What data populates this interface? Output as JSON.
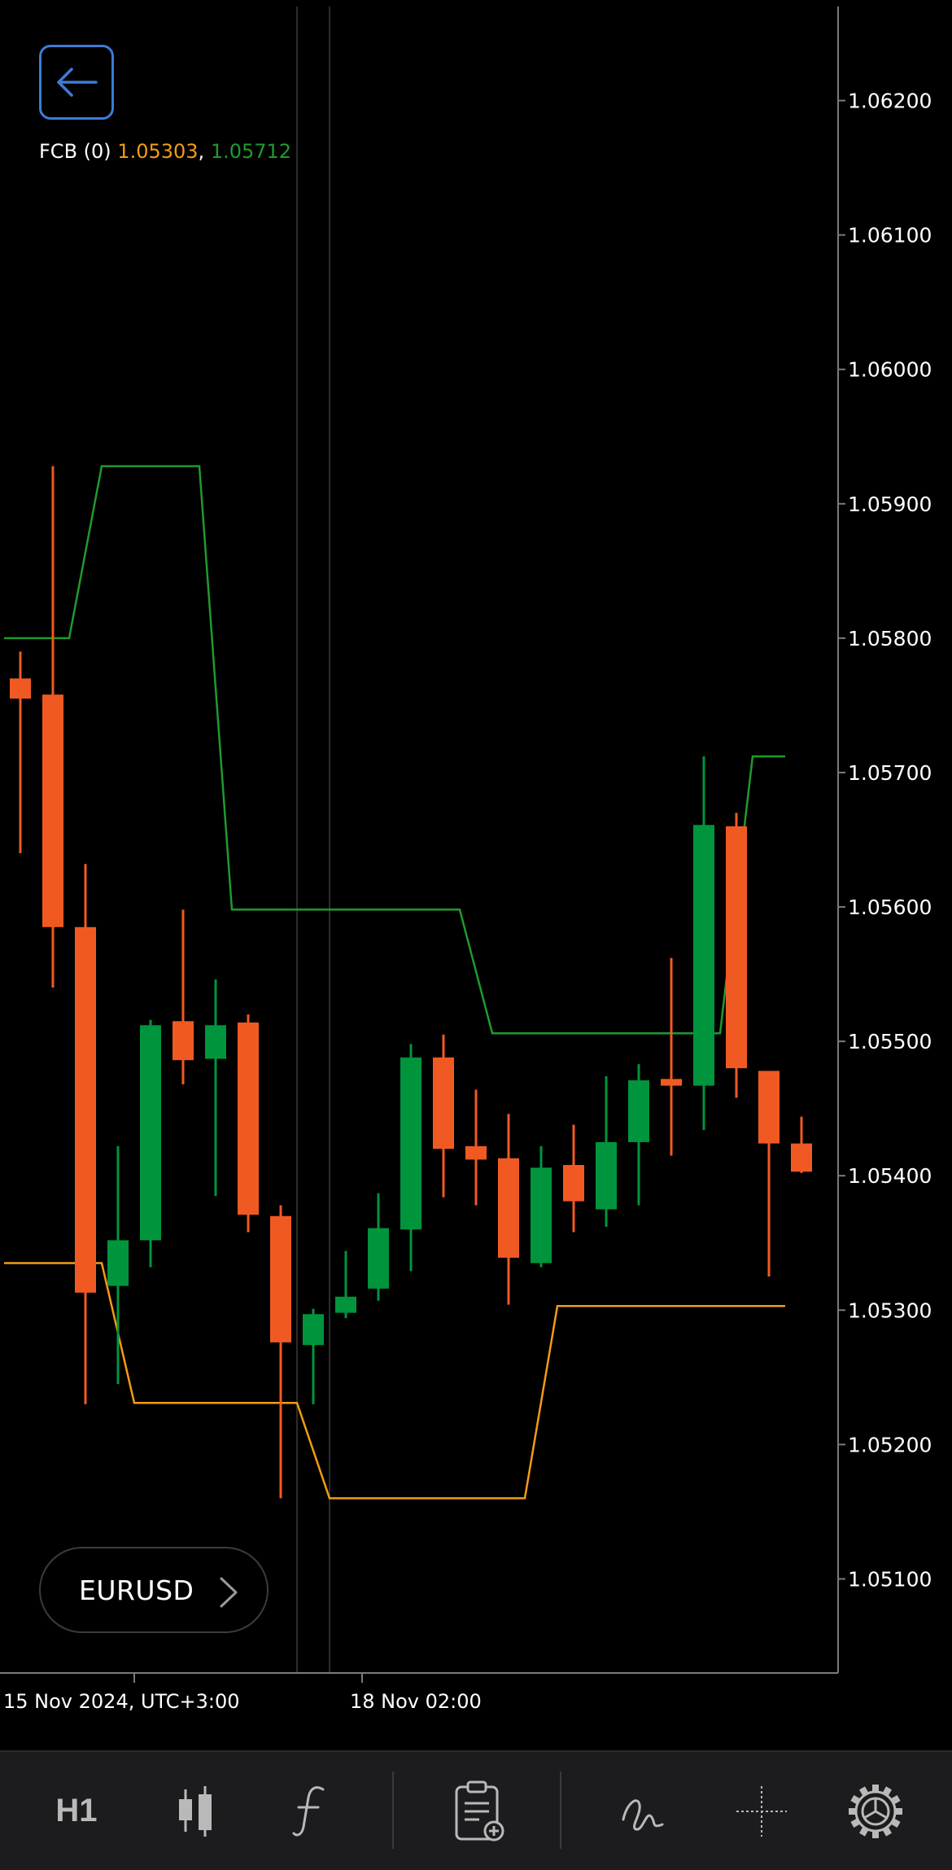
{
  "indicator": {
    "name": "FCB (0)",
    "lower_value": "1.05303",
    "separator": ",",
    "upper_value": "1.05712"
  },
  "symbol": {
    "label": "EURUSD"
  },
  "time_axis": {
    "labels": [
      "15 Nov 2024, UTC+3:00",
      "18 Nov 02:00"
    ]
  },
  "toolbar": {
    "timeframe": "H1",
    "icons": [
      "candlestick-chart-icon",
      "function-icon",
      "clipboard-add-icon",
      "draw-curve-icon",
      "crosshair-icon",
      "settings-gear-icon"
    ]
  },
  "colors": {
    "bull": "#00953d",
    "bear": "#f05a22",
    "upper_band": "#1e9b2e",
    "lower_band": "#f39c12",
    "accent": "#3e7bd8"
  },
  "chart_data": {
    "type": "candlestick",
    "symbol": "EURUSD",
    "timeframe": "H1",
    "y_ticks": [
      "1.06200",
      "1.06100",
      "1.06000",
      "1.05900",
      "1.05800",
      "1.05700",
      "1.05600",
      "1.05500",
      "1.05400",
      "1.05300",
      "1.05200",
      "1.05100"
    ],
    "ylim": [
      1.0503,
      1.0627
    ],
    "candles": [
      {
        "o": 1.0577,
        "h": 1.0579,
        "l": 1.0564,
        "c": 1.05755
      },
      {
        "o": 1.05758,
        "h": 1.05928,
        "l": 1.0554,
        "c": 1.05585
      },
      {
        "o": 1.05585,
        "h": 1.05632,
        "l": 1.0523,
        "c": 1.05313
      },
      {
        "o": 1.05318,
        "h": 1.05422,
        "l": 1.05245,
        "c": 1.05352
      },
      {
        "o": 1.05352,
        "h": 1.05516,
        "l": 1.05332,
        "c": 1.05512
      },
      {
        "o": 1.05515,
        "h": 1.05598,
        "l": 1.05468,
        "c": 1.05486
      },
      {
        "o": 1.05487,
        "h": 1.05546,
        "l": 1.05385,
        "c": 1.05512
      },
      {
        "o": 1.05514,
        "h": 1.0552,
        "l": 1.05358,
        "c": 1.05371
      },
      {
        "o": 1.0537,
        "h": 1.05378,
        "l": 1.0516,
        "c": 1.05276
      },
      {
        "o": 1.05274,
        "h": 1.05301,
        "l": 1.0523,
        "c": 1.05297
      },
      {
        "o": 1.05298,
        "h": 1.05344,
        "l": 1.05294,
        "c": 1.0531
      },
      {
        "o": 1.05316,
        "h": 1.05387,
        "l": 1.05307,
        "c": 1.05361
      },
      {
        "o": 1.0536,
        "h": 1.05498,
        "l": 1.05329,
        "c": 1.05488
      },
      {
        "o": 1.05488,
        "h": 1.05505,
        "l": 1.05384,
        "c": 1.0542
      },
      {
        "o": 1.05422,
        "h": 1.05464,
        "l": 1.05378,
        "c": 1.05412
      },
      {
        "o": 1.05413,
        "h": 1.05446,
        "l": 1.05304,
        "c": 1.05339
      },
      {
        "o": 1.05335,
        "h": 1.05422,
        "l": 1.05332,
        "c": 1.05406
      },
      {
        "o": 1.05408,
        "h": 1.05438,
        "l": 1.05358,
        "c": 1.05381
      },
      {
        "o": 1.05375,
        "h": 1.05474,
        "l": 1.05362,
        "c": 1.05425
      },
      {
        "o": 1.05425,
        "h": 1.05483,
        "l": 1.05378,
        "c": 1.05471
      },
      {
        "o": 1.05472,
        "h": 1.05562,
        "l": 1.05415,
        "c": 1.05467
      },
      {
        "o": 1.05467,
        "h": 1.05712,
        "l": 1.05434,
        "c": 1.05661
      },
      {
        "o": 1.0566,
        "h": 1.0567,
        "l": 1.05458,
        "c": 1.0548
      },
      {
        "o": 1.05478,
        "h": 1.05478,
        "l": 1.05325,
        "c": 1.05424
      },
      {
        "o": 1.05424,
        "h": 1.05444,
        "l": 1.05402,
        "c": 1.05403
      }
    ],
    "upper_band": [
      {
        "i": -0.5,
        "v": 1.058
      },
      {
        "i": 1.5,
        "v": 1.058
      },
      {
        "i": 2.5,
        "v": 1.05928
      },
      {
        "i": 5.5,
        "v": 1.05928
      },
      {
        "i": 6.5,
        "v": 1.05598
      },
      {
        "i": 13.5,
        "v": 1.05598
      },
      {
        "i": 14.5,
        "v": 1.05506
      },
      {
        "i": 21.5,
        "v": 1.05506
      },
      {
        "i": 22.5,
        "v": 1.05712
      },
      {
        "i": 23.5,
        "v": 1.05712
      }
    ],
    "lower_band": [
      {
        "i": -0.5,
        "v": 1.05335
      },
      {
        "i": 2.5,
        "v": 1.05335
      },
      {
        "i": 3.5,
        "v": 1.05231
      },
      {
        "i": 8.5,
        "v": 1.05231
      },
      {
        "i": 9.5,
        "v": 1.0516
      },
      {
        "i": 15.5,
        "v": 1.0516
      },
      {
        "i": 16.5,
        "v": 1.05303
      },
      {
        "i": 23.5,
        "v": 1.05303
      }
    ],
    "vertical_lines_at_index": [
      8.5,
      9.5
    ],
    "time_ticks_at_index": [
      3.5,
      10.5
    ]
  }
}
